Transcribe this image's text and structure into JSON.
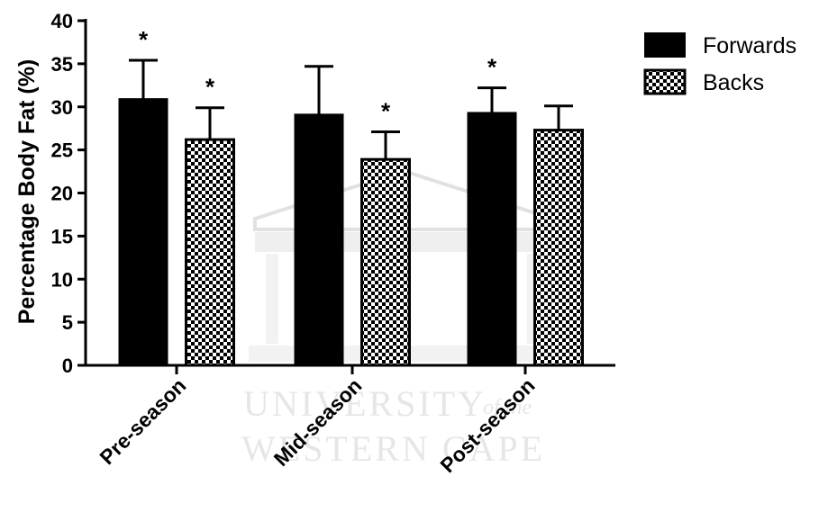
{
  "chart_data": {
    "type": "bar",
    "ylabel": "Percentage Body Fat (%)",
    "xlabel": "",
    "title": "",
    "ylim": [
      0,
      40
    ],
    "yticks": [
      0,
      5,
      10,
      15,
      20,
      25,
      30,
      35,
      40
    ],
    "categories": [
      "Pre-season",
      "Mid-season",
      "Post-season"
    ],
    "series": [
      {
        "name": "Forwards",
        "fill": "solid",
        "color": "#000000",
        "values": [
          30.9,
          29.1,
          29.3
        ],
        "errors": [
          4.5,
          5.6,
          2.9
        ],
        "significance": [
          "*",
          "",
          "*"
        ]
      },
      {
        "name": "Backs",
        "fill": "checkered",
        "color": "#000000",
        "values": [
          26.2,
          23.9,
          27.3
        ],
        "errors": [
          3.7,
          3.2,
          2.8
        ],
        "significance": [
          "*",
          "*",
          ""
        ]
      }
    ],
    "legend_position": "top-right",
    "grid": false
  },
  "watermark": {
    "line1": "UNIVERSITY",
    "line1_italic": "of the",
    "line2": "WESTERN CAPE"
  }
}
